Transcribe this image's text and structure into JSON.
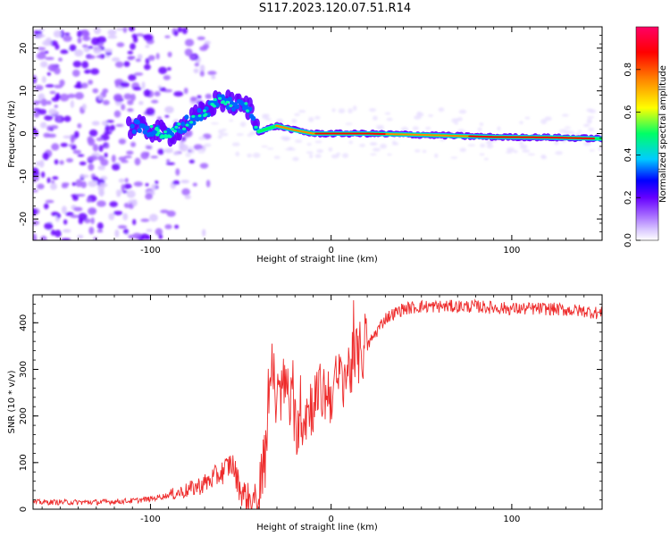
{
  "title": "S117.2023.120.07.51.R14",
  "colors": {
    "snr_line": "#ee2b2b",
    "colormap": [
      "#ffffff",
      "#d9c7ff",
      "#a366ff",
      "#6600ff",
      "#0000ff",
      "#00ccff",
      "#00ff66",
      "#ffff00",
      "#ff8800",
      "#ff0000",
      "#ff0066"
    ]
  },
  "chart_data": [
    {
      "type": "heatmap",
      "title": "",
      "xlabel": "Height of straight line (km)",
      "ylabel": "Frequency (Hz)",
      "xlim": [
        -165,
        150
      ],
      "ylim": [
        -25,
        25
      ],
      "xticks": [
        -100,
        0,
        100
      ],
      "xtick_labels": [
        "-100",
        "0",
        "100"
      ],
      "yticks": [
        -20,
        -10,
        0,
        10,
        20
      ],
      "ytick_labels": [
        "-20",
        "-10",
        "0",
        "10",
        "20"
      ],
      "colorbar": {
        "label": "Normalized spectral amplitude",
        "range": [
          0,
          1
        ],
        "ticks": [
          0.0,
          0.2,
          0.4,
          0.6,
          0.8
        ],
        "tick_labels": [
          "0.0",
          "0.2",
          "0.4",
          "0.6",
          "0.8"
        ]
      },
      "ridge": {
        "description_points_height_km": [
          -110,
          -100,
          -90,
          -80,
          -70,
          -62,
          -55,
          -45,
          -40,
          -30,
          -20,
          -10,
          0,
          20,
          50,
          90,
          120,
          150
        ],
        "frequency_hz": [
          1.5,
          1.0,
          -0.5,
          2.5,
          5.0,
          8.0,
          7.0,
          6.0,
          0.5,
          1.8,
          0.8,
          0.0,
          0.0,
          0.0,
          -0.3,
          -0.8,
          -0.9,
          -1.2
        ],
        "amplitude": [
          0.35,
          0.3,
          0.3,
          0.35,
          0.35,
          0.3,
          0.3,
          0.3,
          0.4,
          0.7,
          0.75,
          0.8,
          0.9,
          0.85,
          0.75,
          0.85,
          0.9,
          0.8
        ]
      },
      "noise_region_km": [
        -165,
        -90
      ]
    },
    {
      "type": "line",
      "title": "",
      "xlabel": "Height of straight line (km)",
      "ylabel": "SNR (10 * v/v)",
      "xlim": [
        -165,
        150
      ],
      "ylim": [
        0,
        460
      ],
      "xticks": [
        -100,
        0,
        100
      ],
      "xtick_labels": [
        "-100",
        "0",
        "100"
      ],
      "yticks": [
        0,
        100,
        200,
        300,
        400
      ],
      "ytick_labels": [
        "0",
        "100",
        "200",
        "300",
        "400"
      ],
      "series": [
        {
          "x": [
            -165,
            -150,
            -130,
            -110,
            -100,
            -90,
            -80,
            -70,
            -60,
            -55,
            -50,
            -45,
            -40,
            -36,
            -34,
            -32,
            -30,
            -28,
            -25,
            -20,
            -15,
            -10,
            -5,
            0,
            5,
            10,
            15,
            20,
            25,
            30,
            40,
            50,
            60,
            80,
            100,
            120,
            140,
            150
          ],
          "y": [
            15,
            15,
            15,
            18,
            22,
            30,
            40,
            55,
            80,
            100,
            40,
            20,
            20,
            130,
            280,
            300,
            200,
            250,
            270,
            180,
            200,
            230,
            250,
            250,
            280,
            300,
            330,
            350,
            380,
            410,
            430,
            435,
            435,
            435,
            430,
            430,
            425,
            420
          ]
        }
      ]
    }
  ]
}
